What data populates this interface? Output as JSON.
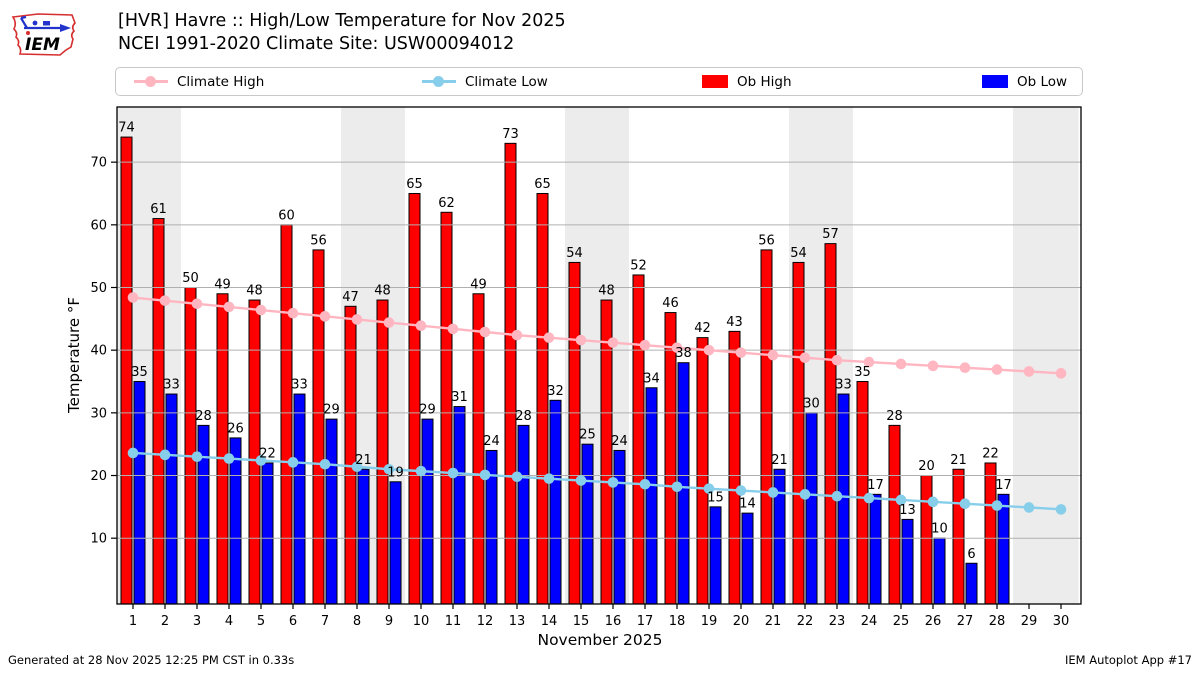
{
  "header": {
    "title": "[HVR] Havre :: High/Low Temperature for Nov 2025",
    "subtitle": "NCEI 1991-2020 Climate Site: USW00094012",
    "logo_text": "IEM"
  },
  "legend": {
    "items": [
      {
        "label": "Climate High",
        "type": "line",
        "color": "#ffb6c1"
      },
      {
        "label": "Climate Low",
        "type": "line",
        "color": "#87ceeb"
      },
      {
        "label": "Ob High",
        "type": "rect",
        "color": "#ff0000"
      },
      {
        "label": "Ob Low",
        "type": "rect",
        "color": "#0000ff"
      }
    ]
  },
  "footer": {
    "left": "Generated at 28 Nov 2025 12:25 PM CST in 0.33s",
    "right": "IEM Autoplot App #17"
  },
  "colors": {
    "ob_high": "#ff0000",
    "ob_low": "#0000ff",
    "climate_high": "#ffb6c1",
    "climate_low": "#87ceeb",
    "weekend_band": "#ececec",
    "gridline": "#b0b0b0",
    "spine": "#000000"
  },
  "chart_data": {
    "type": "bar",
    "title": "[HVR] Havre :: High/Low Temperature for Nov 2025",
    "xlabel": "November 2025",
    "ylabel": "Temperature °F",
    "ylim": [
      -0.5,
      78.8
    ],
    "yticks": [
      10,
      20,
      30,
      40,
      50,
      60,
      70
    ],
    "days": [
      1,
      2,
      3,
      4,
      5,
      6,
      7,
      8,
      9,
      10,
      11,
      12,
      13,
      14,
      15,
      16,
      17,
      18,
      19,
      20,
      21,
      22,
      23,
      24,
      25,
      26,
      27,
      28,
      29,
      30
    ],
    "grid": true,
    "legend_position": "top",
    "weekend_bands": [
      [
        0.5,
        2.5
      ],
      [
        7.5,
        9.5
      ],
      [
        14.5,
        16.5
      ],
      [
        21.5,
        23.5
      ],
      [
        28.5,
        30.55
      ]
    ],
    "series": [
      {
        "name": "Ob High",
        "type": "bar",
        "color": "#ff0000",
        "values": [
          74,
          61,
          50,
          49,
          48,
          60,
          56,
          47,
          48,
          65,
          62,
          49,
          73,
          65,
          54,
          48,
          52,
          46,
          42,
          43,
          56,
          54,
          57,
          35,
          28,
          20,
          21,
          22,
          null,
          null
        ]
      },
      {
        "name": "Ob Low",
        "type": "bar",
        "color": "#0000ff",
        "values": [
          35,
          33,
          28,
          26,
          22,
          33,
          29,
          21,
          19,
          29,
          31,
          24,
          28,
          32,
          25,
          24,
          34,
          38,
          15,
          14,
          21,
          30,
          33,
          17,
          13,
          10,
          6,
          17,
          null,
          null
        ]
      },
      {
        "name": "Climate High",
        "type": "line",
        "color": "#ffb6c1",
        "values": [
          48.4,
          47.9,
          47.4,
          46.9,
          46.4,
          45.9,
          45.4,
          44.9,
          44.4,
          43.9,
          43.4,
          42.9,
          42.4,
          42.0,
          41.6,
          41.2,
          40.8,
          40.4,
          40.0,
          39.6,
          39.2,
          38.8,
          38.4,
          38.1,
          37.8,
          37.5,
          37.2,
          36.9,
          36.6,
          36.3
        ]
      },
      {
        "name": "Climate Low",
        "type": "line",
        "color": "#87ceeb",
        "values": [
          23.6,
          23.3,
          23.0,
          22.7,
          22.4,
          22.1,
          21.8,
          21.4,
          21.0,
          20.7,
          20.4,
          20.1,
          19.8,
          19.5,
          19.2,
          18.9,
          18.6,
          18.2,
          17.9,
          17.6,
          17.3,
          17.0,
          16.7,
          16.4,
          16.1,
          15.8,
          15.5,
          15.2,
          14.9,
          14.6
        ]
      }
    ]
  }
}
